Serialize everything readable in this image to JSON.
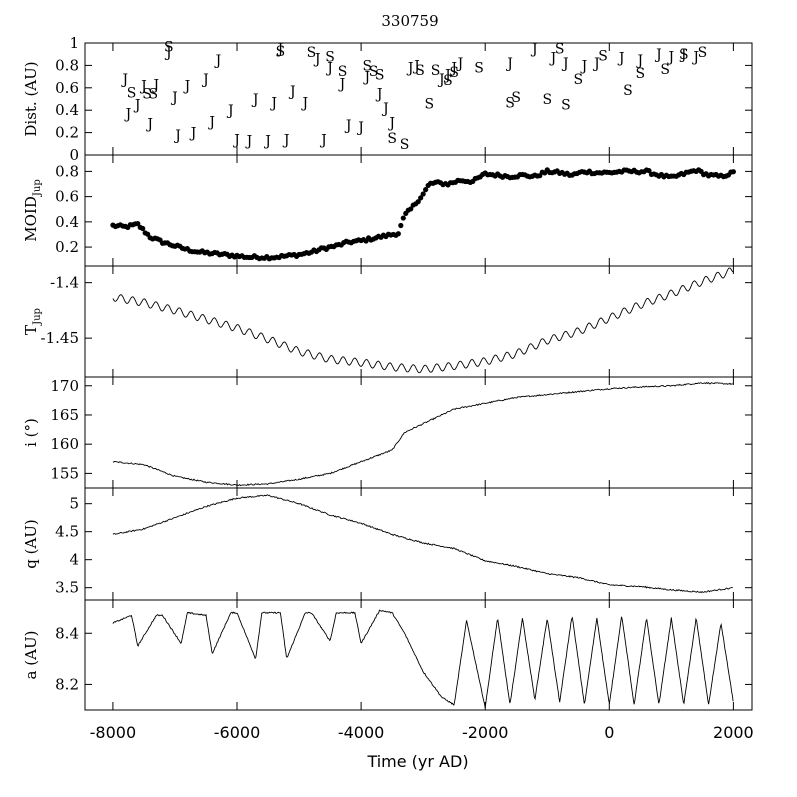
{
  "chart_data": {
    "type": "line",
    "title": "330759",
    "xlabel": "Time (yr AD)",
    "xlim": [
      -8450,
      2300
    ],
    "xticks": [
      -8000,
      -6000,
      -4000,
      -2000,
      0,
      2000
    ],
    "xtick_labels": [
      "-8000",
      "-6000",
      "-4000",
      "-2000",
      "0",
      "2000"
    ],
    "panels": [
      {
        "key": "dist",
        "ylabel_main": "Dist. (AU)",
        "ylabel_sub": "",
        "type": "scatter-letters",
        "ylim": [
          0,
          1
        ],
        "yticks": [
          0,
          0.2,
          0.4,
          0.6,
          0.8,
          1
        ],
        "ytick_labels": [
          "0",
          "0.2",
          "0.4",
          "0.6",
          "0.8",
          "1"
        ],
        "series": [
          {
            "name": "J",
            "points": [
              [
                -7800,
                0.68
              ],
              [
                -7750,
                0.37
              ],
              [
                -7600,
                0.45
              ],
              [
                -7500,
                0.62
              ],
              [
                -7400,
                0.28
              ],
              [
                -7300,
                0.63
              ],
              [
                -7100,
                0.92
              ],
              [
                -7000,
                0.52
              ],
              [
                -6950,
                0.18
              ],
              [
                -6800,
                0.62
              ],
              [
                -6700,
                0.2
              ],
              [
                -6500,
                0.68
              ],
              [
                -6400,
                0.3
              ],
              [
                -6300,
                0.85
              ],
              [
                -6100,
                0.4
              ],
              [
                -6000,
                0.14
              ],
              [
                -5800,
                0.13
              ],
              [
                -5700,
                0.5
              ],
              [
                -5500,
                0.13
              ],
              [
                -5400,
                0.47
              ],
              [
                -5300,
                0.95
              ],
              [
                -5200,
                0.14
              ],
              [
                -5100,
                0.57
              ],
              [
                -4900,
                0.47
              ],
              [
                -4700,
                0.86
              ],
              [
                -4600,
                0.14
              ],
              [
                -4500,
                0.78
              ],
              [
                -4300,
                0.64
              ],
              [
                -4200,
                0.27
              ],
              [
                -4000,
                0.25
              ],
              [
                -3900,
                0.7
              ],
              [
                -3700,
                0.55
              ],
              [
                -3600,
                0.42
              ],
              [
                -3500,
                0.29
              ],
              [
                -3200,
                0.78
              ],
              [
                -3100,
                0.8
              ],
              [
                -2700,
                0.68
              ],
              [
                -2600,
                0.72
              ],
              [
                -2500,
                0.78
              ],
              [
                -2400,
                0.82
              ],
              [
                -1600,
                0.82
              ],
              [
                -1200,
                0.95
              ],
              [
                -900,
                0.87
              ],
              [
                -700,
                0.82
              ],
              [
                -400,
                0.8
              ],
              [
                -200,
                0.82
              ],
              [
                200,
                0.87
              ],
              [
                500,
                0.85
              ],
              [
                800,
                0.9
              ],
              [
                1000,
                0.88
              ],
              [
                1200,
                0.9
              ],
              [
                1400,
                0.88
              ]
            ]
          },
          {
            "name": "S",
            "points": [
              [
                -7700,
                0.56
              ],
              [
                -7450,
                0.55
              ],
              [
                -7350,
                0.55
              ],
              [
                -7100,
                0.97
              ],
              [
                -5300,
                0.93
              ],
              [
                -4800,
                0.92
              ],
              [
                -4500,
                0.88
              ],
              [
                -4300,
                0.75
              ],
              [
                -3900,
                0.8
              ],
              [
                -3800,
                0.75
              ],
              [
                -3700,
                0.72
              ],
              [
                -3500,
                0.15
              ],
              [
                -3300,
                0.1
              ],
              [
                -3050,
                0.76
              ],
              [
                -2900,
                0.46
              ],
              [
                -2800,
                0.76
              ],
              [
                -2600,
                0.67
              ],
              [
                -2500,
                0.74
              ],
              [
                -2100,
                0.78
              ],
              [
                -1600,
                0.47
              ],
              [
                -1500,
                0.52
              ],
              [
                -1000,
                0.5
              ],
              [
                -800,
                0.95
              ],
              [
                -700,
                0.45
              ],
              [
                -500,
                0.68
              ],
              [
                -100,
                0.89
              ],
              [
                300,
                0.58
              ],
              [
                500,
                0.73
              ],
              [
                900,
                0.77
              ],
              [
                1200,
                0.9
              ],
              [
                1500,
                0.92
              ]
            ]
          }
        ]
      },
      {
        "key": "moid",
        "ylabel_main": "MOID",
        "ylabel_sub": "Jup",
        "type": "scatter",
        "ylim": [
          0.05,
          0.93
        ],
        "yticks": [
          0.2,
          0.4,
          0.6,
          0.8
        ],
        "ytick_labels": [
          "0.2",
          "0.4",
          "0.6",
          "0.8"
        ],
        "x": [
          -8000,
          -7800,
          -7600,
          -7400,
          -7200,
          -7000,
          -6800,
          -6600,
          -6400,
          -6200,
          -6000,
          -5800,
          -5600,
          -5400,
          -5200,
          -5000,
          -4800,
          -4600,
          -4400,
          -4200,
          -4000,
          -3800,
          -3600,
          -3400,
          -3300,
          -3200,
          -3000,
          -2900,
          -2800,
          -2600,
          -2400,
          -2200,
          -2000,
          -1800,
          -1600,
          -1400,
          -1200,
          -1000,
          -800,
          -600,
          -400,
          -200,
          0,
          200,
          400,
          600,
          800,
          1000,
          1200,
          1400,
          1600,
          1800,
          2000
        ],
        "y": [
          0.37,
          0.36,
          0.38,
          0.28,
          0.24,
          0.21,
          0.18,
          0.16,
          0.15,
          0.14,
          0.13,
          0.12,
          0.12,
          0.12,
          0.13,
          0.14,
          0.16,
          0.19,
          0.21,
          0.24,
          0.25,
          0.27,
          0.29,
          0.31,
          0.45,
          0.5,
          0.62,
          0.7,
          0.71,
          0.7,
          0.73,
          0.72,
          0.78,
          0.77,
          0.76,
          0.77,
          0.76,
          0.8,
          0.79,
          0.77,
          0.8,
          0.79,
          0.79,
          0.8,
          0.8,
          0.8,
          0.77,
          0.75,
          0.78,
          0.81,
          0.77,
          0.76,
          0.79
        ]
      },
      {
        "key": "tjup",
        "ylabel_main": "T",
        "ylabel_sub": "Jup",
        "type": "line",
        "ylim": [
          -1.485,
          -1.385
        ],
        "yticks": [
          -1.45,
          -1.4
        ],
        "ytick_labels": [
          "-1.45",
          "-1.4"
        ],
        "x": [
          -8000,
          -7500,
          -7000,
          -6500,
          -6000,
          -5500,
          -5000,
          -4500,
          -4000,
          -3500,
          -3000,
          -2500,
          -2000,
          -1500,
          -1000,
          -500,
          0,
          500,
          1000,
          1500,
          2000
        ],
        "y": [
          -1.413,
          -1.418,
          -1.425,
          -1.433,
          -1.441,
          -1.451,
          -1.462,
          -1.469,
          -1.472,
          -1.476,
          -1.478,
          -1.475,
          -1.471,
          -1.464,
          -1.452,
          -1.444,
          -1.432,
          -1.42,
          -1.41,
          -1.399,
          -1.389
        ]
      },
      {
        "key": "incl",
        "ylabel_main": "i (°)",
        "ylabel_sub": "",
        "type": "line",
        "ylim": [
          152.5,
          171.5
        ],
        "yticks": [
          155,
          160,
          165,
          170
        ],
        "ytick_labels": [
          "155",
          "160",
          "165",
          "170"
        ],
        "x": [
          -8000,
          -7500,
          -7000,
          -6500,
          -6000,
          -5500,
          -5000,
          -4500,
          -4000,
          -3500,
          -3300,
          -3000,
          -2500,
          -2000,
          -1500,
          -1000,
          -500,
          0,
          500,
          1000,
          1500,
          2000
        ],
        "y": [
          157,
          156.5,
          154.5,
          153.5,
          153,
          153.2,
          154,
          155,
          157,
          159,
          162,
          163.5,
          166,
          167,
          168,
          168.5,
          169,
          169.5,
          169.8,
          170,
          170.5,
          170.3
        ]
      },
      {
        "key": "q",
        "ylabel_main": "q (AU)",
        "ylabel_sub": "",
        "type": "line",
        "ylim": [
          3.28,
          5.28
        ],
        "yticks": [
          3.5,
          4,
          4.5,
          5
        ],
        "ytick_labels": [
          "3.5",
          "4",
          "4.5",
          "5"
        ],
        "x": [
          -8000,
          -7500,
          -7000,
          -6500,
          -6000,
          -5500,
          -5000,
          -4500,
          -4000,
          -3500,
          -3000,
          -2500,
          -2000,
          -1500,
          -1000,
          -500,
          0,
          500,
          1000,
          1500,
          2000
        ],
        "y": [
          4.45,
          4.55,
          4.75,
          4.95,
          5.1,
          5.15,
          5.0,
          4.8,
          4.65,
          4.45,
          4.3,
          4.2,
          3.98,
          3.88,
          3.75,
          3.68,
          3.55,
          3.52,
          3.46,
          3.42,
          3.5
        ]
      },
      {
        "key": "a",
        "ylabel_main": "a (AU)",
        "ylabel_sub": "",
        "type": "line",
        "ylim": [
          8.1,
          8.53
        ],
        "yticks": [
          8.2,
          8.4
        ],
        "ytick_labels": [
          "8.2",
          "8.4"
        ],
        "x": [
          -8000,
          -7700,
          -7600,
          -7300,
          -7200,
          -6900,
          -6800,
          -6500,
          -6400,
          -6100,
          -6000,
          -5700,
          -5600,
          -5300,
          -5200,
          -4900,
          -4800,
          -4500,
          -4400,
          -4100,
          -4000,
          -3700,
          -3500,
          -3300,
          -3000,
          -2700,
          -2500,
          -2300,
          -2000,
          -1800,
          -1600,
          -1400,
          -1200,
          -1000,
          -800,
          -600,
          -400,
          -200,
          0,
          200,
          400,
          600,
          800,
          1000,
          1200,
          1400,
          1600,
          1800,
          2000
        ],
        "y": [
          8.44,
          8.47,
          8.35,
          8.47,
          8.47,
          8.36,
          8.48,
          8.47,
          8.32,
          8.48,
          8.48,
          8.3,
          8.48,
          8.48,
          8.3,
          8.48,
          8.48,
          8.37,
          8.48,
          8.48,
          8.36,
          8.49,
          8.48,
          8.4,
          8.25,
          8.15,
          8.12,
          8.45,
          8.11,
          8.46,
          8.12,
          8.46,
          8.14,
          8.46,
          8.13,
          8.47,
          8.12,
          8.46,
          8.12,
          8.47,
          8.12,
          8.46,
          8.12,
          8.46,
          8.12,
          8.46,
          8.12,
          8.44,
          8.13
        ]
      }
    ]
  }
}
